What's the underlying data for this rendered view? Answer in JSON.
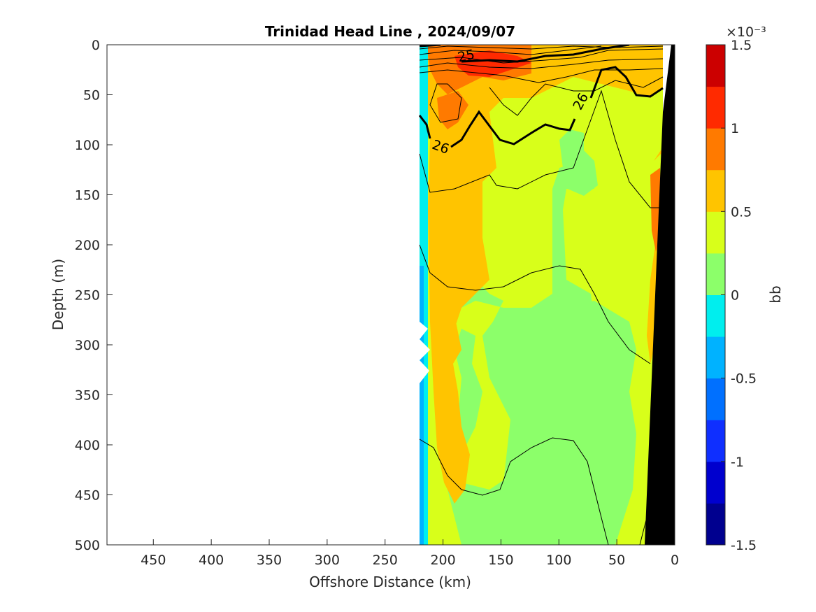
{
  "chart_data": {
    "type": "heatmap",
    "title": "Trinidad Head Line , 2024/09/07",
    "xlabel": "Offshore Distance (km)",
    "ylabel": "Depth (m)",
    "xlim": [
      490,
      0
    ],
    "ylim": [
      0,
      500
    ],
    "x_reversed": true,
    "y_reversed": true,
    "x_ticks": [
      450,
      400,
      350,
      300,
      250,
      200,
      150,
      100,
      50,
      0
    ],
    "y_ticks": [
      0,
      50,
      100,
      150,
      200,
      250,
      300,
      350,
      400,
      450,
      500
    ],
    "data_extent_km": [
      220,
      10
    ],
    "colorbar": {
      "label": "bb",
      "exponent_label": "×10⁻³",
      "range": [
        -1.5,
        1.5
      ],
      "ticks": [
        1.5,
        1,
        0.5,
        0,
        -0.5,
        -1,
        -1.5
      ],
      "levels": [
        -1.5,
        -1.25,
        -1.0,
        -0.75,
        -0.5,
        -0.25,
        0,
        0.25,
        0.5,
        0.75,
        1.0,
        1.25,
        1.5
      ],
      "colors": [
        "#00008f",
        "#0000ce",
        "#0f2fff",
        "#0070ff",
        "#00b2ff",
        "#00eeee",
        "#1fe6b0",
        "#8cff6a",
        "#d8ff1a",
        "#ffc400",
        "#ff7a00",
        "#ff2a00",
        "#cc0000"
      ]
    },
    "field_description": [
      {
        "region": "surface 0-40 m, 130-180 km",
        "bb": 1.1
      },
      {
        "region": "40-100 m, 140-220 km",
        "bb": 0.8
      },
      {
        "region": "100-250 m, 160-215 km",
        "bb": 0.6
      },
      {
        "region": "100-250 m, 20-130 km",
        "bb": 0.3
      },
      {
        "region": "250-500 m, 40-150 km",
        "bb": 0.1
      },
      {
        "region": "nearshore 0-500 m, 15-30 km",
        "bb": 0.6
      },
      {
        "region": "western edge 220 km",
        "bb": -0.3
      }
    ],
    "contours": [
      {
        "label": "25",
        "value": 25,
        "weight": "bold"
      },
      {
        "label": "26",
        "value": 26,
        "weight": "bold"
      },
      {
        "label": "26",
        "value": 26,
        "weight": "bold"
      }
    ],
    "bathymetry": "black wedge, 0-25 km"
  }
}
